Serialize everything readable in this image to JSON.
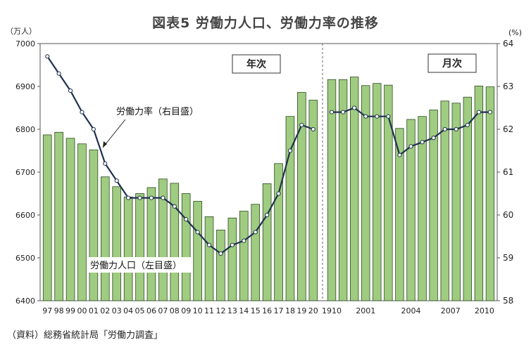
{
  "title": "図表5 労働力人口、労働力率の推移",
  "source": "（資料）総務省統計局「労働力調査」",
  "chart_data": {
    "type": "bar",
    "title": "図表5 労働力人口、労働力率の推移",
    "y_left_unit": "（万人）",
    "y_right_unit": "(%)",
    "y_left_range": [
      6400,
      7000
    ],
    "y_left_ticks": [
      "6400",
      "6500",
      "6600",
      "6700",
      "6800",
      "6900",
      "7000"
    ],
    "y_right_range": [
      58,
      64
    ],
    "y_right_ticks": [
      "58",
      "59",
      "60",
      "61",
      "62",
      "63",
      "64"
    ],
    "grid": false,
    "panel_labels": [
      "年次",
      "月次"
    ],
    "annotations": {
      "rate": "労働力率（右目盛）",
      "population": "労働力人口（左目盛）"
    },
    "colors": {
      "bar": "#9fcc80",
      "bar_edge": "#2e4a22",
      "line": "#1f3150",
      "marker_fill": "#ffffff"
    },
    "annual": {
      "categories": [
        "97",
        "98",
        "99",
        "00",
        "01",
        "02",
        "03",
        "04",
        "05",
        "06",
        "07",
        "08",
        "09",
        "10",
        "11",
        "12",
        "13",
        "14",
        "15",
        "16",
        "17",
        "18",
        "19",
        "20"
      ],
      "series": [
        {
          "name": "労働力人口",
          "axis": "left",
          "values": [
            6787,
            6793,
            6779,
            6766,
            6752,
            6689,
            6666,
            6642,
            6650,
            6664,
            6684,
            6674,
            6650,
            6632,
            6596,
            6565,
            6593,
            6609,
            6625,
            6673,
            6720,
            6830,
            6886,
            6868
          ]
        },
        {
          "name": "労働力率",
          "axis": "right",
          "values": [
            63.7,
            63.3,
            62.9,
            62.4,
            62.0,
            61.2,
            60.8,
            60.4,
            60.4,
            60.4,
            60.4,
            60.2,
            59.9,
            59.6,
            59.3,
            59.1,
            59.3,
            59.4,
            59.6,
            60.0,
            60.5,
            61.5,
            62.1,
            62.0
          ]
        }
      ]
    },
    "monthly": {
      "tick_labels": [
        "1910",
        "2001",
        "2004",
        "2007",
        "2010"
      ],
      "series": [
        {
          "name": "労働力人口",
          "axis": "left",
          "values": [
            6916,
            6916,
            6922,
            6902,
            6907,
            6903,
            6802,
            6823,
            6830,
            6845,
            6866,
            6861,
            6875,
            6901,
            6899
          ]
        },
        {
          "name": "労働力率",
          "axis": "right",
          "values": [
            62.4,
            62.4,
            62.5,
            62.3,
            62.3,
            62.3,
            61.4,
            61.6,
            61.7,
            61.8,
            62.0,
            62.0,
            62.1,
            62.4,
            62.4
          ]
        }
      ]
    }
  }
}
